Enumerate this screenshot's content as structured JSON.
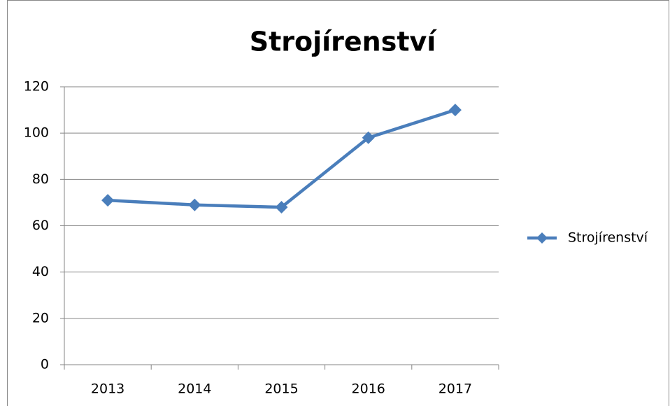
{
  "chart_data": {
    "type": "line",
    "title": "Strojírenství",
    "categories": [
      "2013",
      "2014",
      "2015",
      "2016",
      "2017"
    ],
    "series": [
      {
        "name": "Strojírenství",
        "color": "#4a7ebb",
        "values": [
          71,
          69,
          68,
          98,
          110
        ]
      }
    ],
    "ylim": [
      0,
      120
    ],
    "yticks": [
      0,
      20,
      40,
      60,
      80,
      100,
      120
    ],
    "grid": true,
    "legend": "right"
  }
}
